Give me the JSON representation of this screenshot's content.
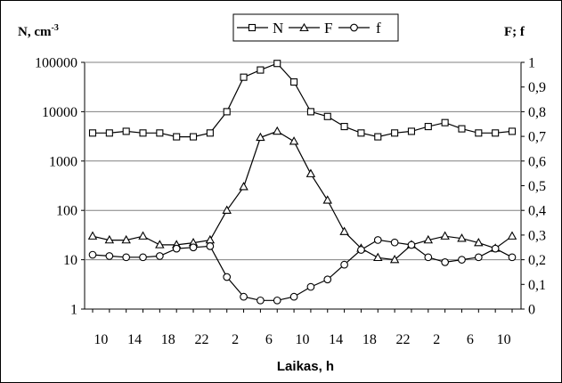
{
  "chart_data": {
    "type": "line",
    "title": "",
    "xlabel": "Laikas, h",
    "ylabel_left": "N, cm",
    "ylabel_left_superscript": "-3",
    "ylabel_right": "F; f",
    "left_axis": {
      "scale": "log",
      "ylim": [
        1,
        100000
      ],
      "ticks": [
        "1",
        "10",
        "100",
        "1000",
        "10000",
        "100000"
      ]
    },
    "right_axis": {
      "scale": "linear",
      "ylim": [
        0,
        1
      ],
      "ticks": [
        "0",
        "0,1",
        "0,2",
        "0,3",
        "0,4",
        "0,5",
        "0,6",
        "0,7",
        "0,8",
        "0,9",
        "1"
      ]
    },
    "x_tick_labels": [
      "10",
      "14",
      "18",
      "22",
      "2",
      "6",
      "10",
      "14",
      "18",
      "22",
      "2",
      "6",
      "10"
    ],
    "x": [
      "9",
      "11",
      "13",
      "15",
      "17",
      "19",
      "21",
      "23",
      "1",
      "3",
      "5",
      "7",
      "9",
      "11",
      "13",
      "15",
      "17",
      "19",
      "21",
      "23",
      "1",
      "3",
      "5",
      "7",
      "9",
      "11"
    ],
    "legend_position": "top",
    "series": [
      {
        "name": "N",
        "axis": "left",
        "marker": "square",
        "values": [
          3700,
          3700,
          4000,
          3700,
          3700,
          3100,
          3100,
          3700,
          10000,
          50000,
          70000,
          95000,
          40000,
          10000,
          8000,
          5000,
          3700,
          3100,
          3700,
          4000,
          5000,
          6000,
          4500,
          3700,
          3700,
          4000
        ]
      },
      {
        "name": "F",
        "axis": "left",
        "marker": "triangle",
        "values": [
          30,
          25,
          25,
          30,
          20,
          20,
          22,
          25,
          100,
          300,
          3000,
          4000,
          2500,
          550,
          160,
          37,
          17,
          11,
          10,
          20,
          25,
          30,
          27,
          22,
          17,
          30
        ]
      },
      {
        "name": "f",
        "axis": "right",
        "marker": "circle",
        "values": [
          0.22,
          0.215,
          0.21,
          0.21,
          0.215,
          0.245,
          0.25,
          0.255,
          0.13,
          0.05,
          0.035,
          0.035,
          0.05,
          0.09,
          0.12,
          0.18,
          0.24,
          0.28,
          0.27,
          0.26,
          0.21,
          0.19,
          0.2,
          0.21,
          0.245,
          0.21
        ]
      }
    ]
  }
}
